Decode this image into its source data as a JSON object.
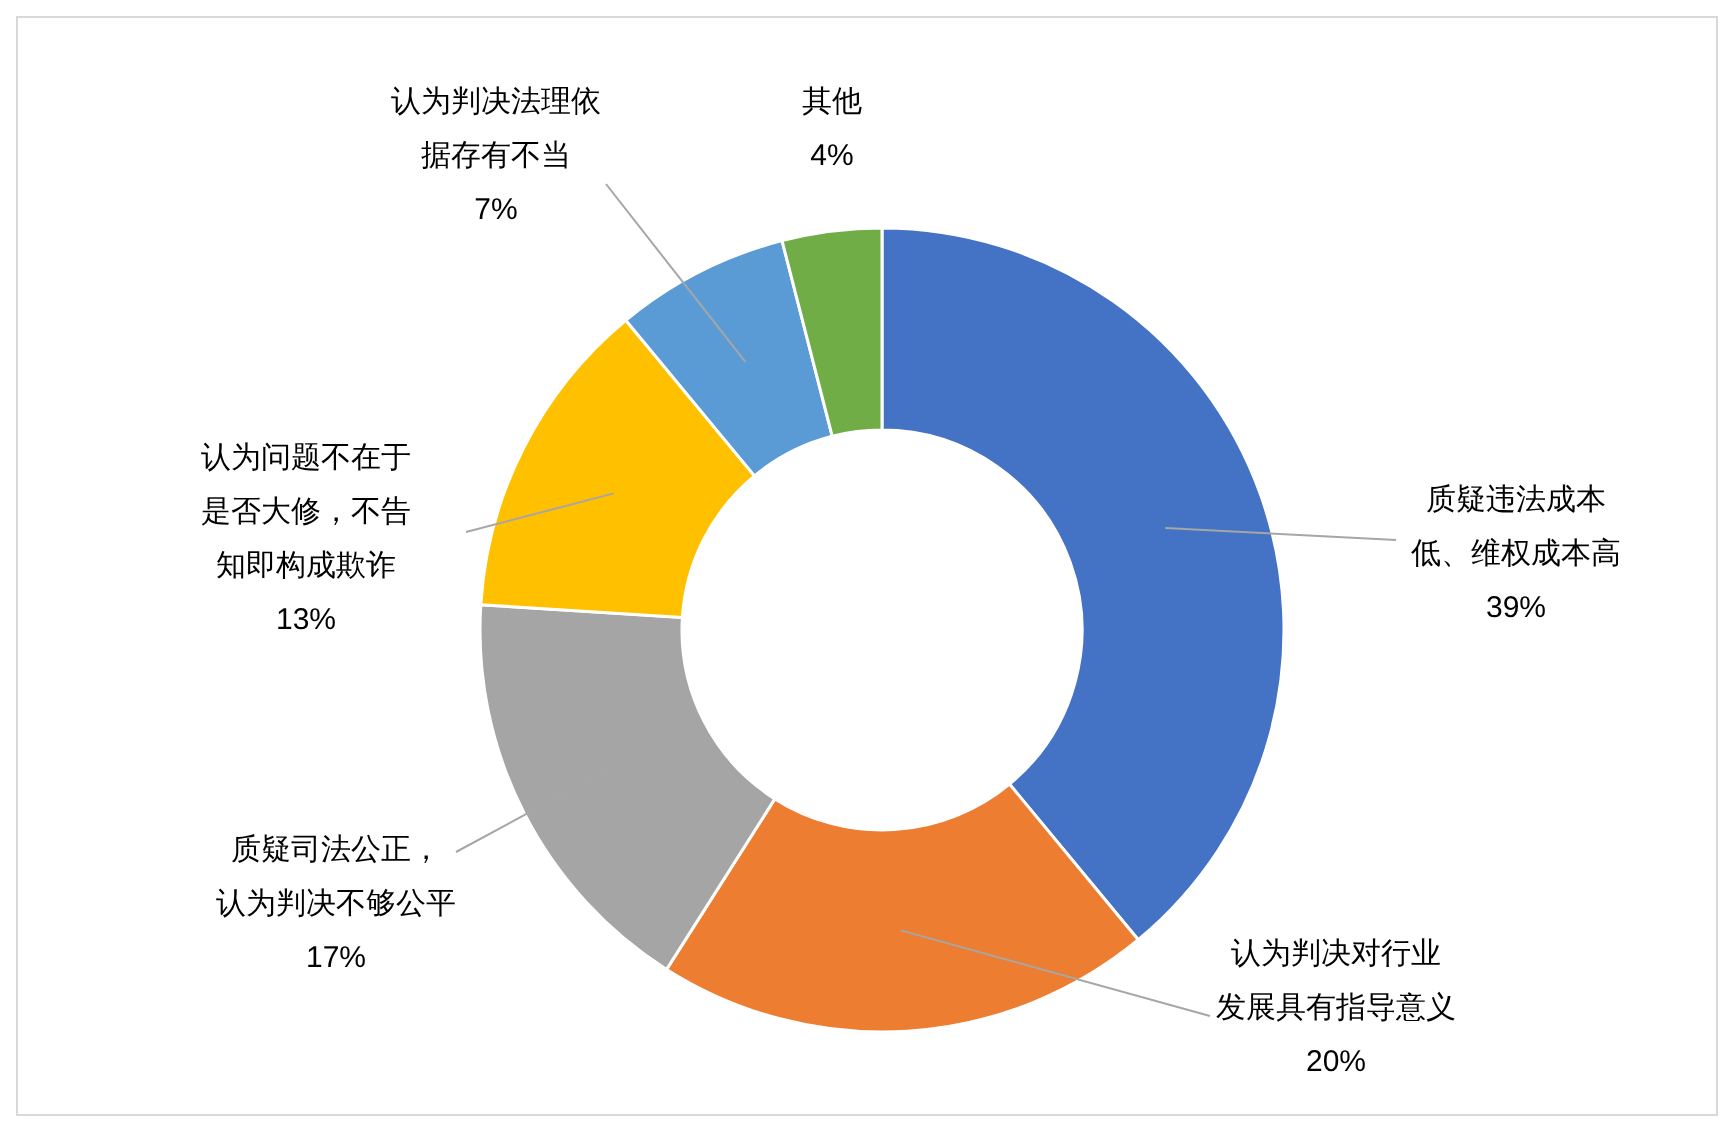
{
  "chart_data": {
    "type": "donut",
    "categories": [
      "质疑违法成本低、维权成本高",
      "认为判决对行业发展具有指导意义",
      "质疑司法公正，认为判决不够公平",
      "认为问题不在于是否大修，不告知即构成欺诈",
      "认为判决法理依据存有不当",
      "其他"
    ],
    "values": [
      39,
      20,
      17,
      13,
      7,
      4
    ],
    "colors": [
      "#4472c4",
      "#ed7d31",
      "#a5a5a5",
      "#ffc000",
      "#5b9bd5",
      "#70ad47"
    ],
    "value_labels": [
      "39%",
      "20%",
      "17%",
      "13%",
      "7%",
      "4%"
    ],
    "legend": false
  }
}
